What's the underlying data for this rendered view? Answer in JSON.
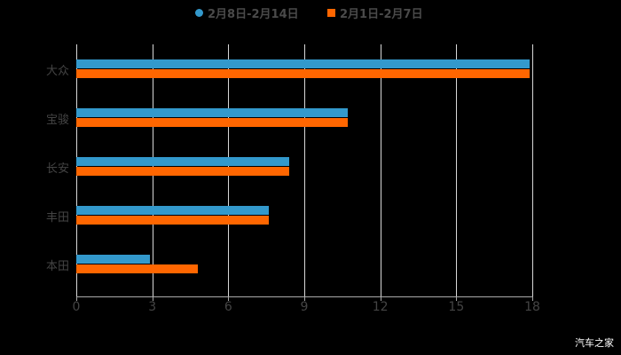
{
  "chart_data": {
    "type": "bar",
    "orientation": "horizontal",
    "title": "",
    "categories": [
      "大众",
      "宝骏",
      "长安",
      "丰田",
      "本田"
    ],
    "series": [
      {
        "name": "2月8日-2月14日",
        "color": "#3399cc",
        "values": [
          17.9,
          10.7,
          8.4,
          7.6,
          2.9
        ]
      },
      {
        "name": "2月1日-2月7日",
        "color": "#ff6600",
        "values": [
          17.9,
          10.7,
          8.4,
          7.6,
          4.8
        ]
      }
    ],
    "xlabel": "",
    "ylabel": "",
    "xlim": [
      0,
      18
    ],
    "xticks": [
      "0",
      "3",
      "6",
      "9",
      "12",
      "15",
      "18"
    ],
    "grid": true,
    "legend_position": "top"
  },
  "legend": {
    "items": [
      {
        "label": "2月8日-2月14日",
        "color": "#3399cc",
        "marker": "circle"
      },
      {
        "label": "2月1日-2月7日",
        "color": "#ff6600",
        "marker": "square"
      }
    ]
  },
  "watermark": "汽车之家"
}
